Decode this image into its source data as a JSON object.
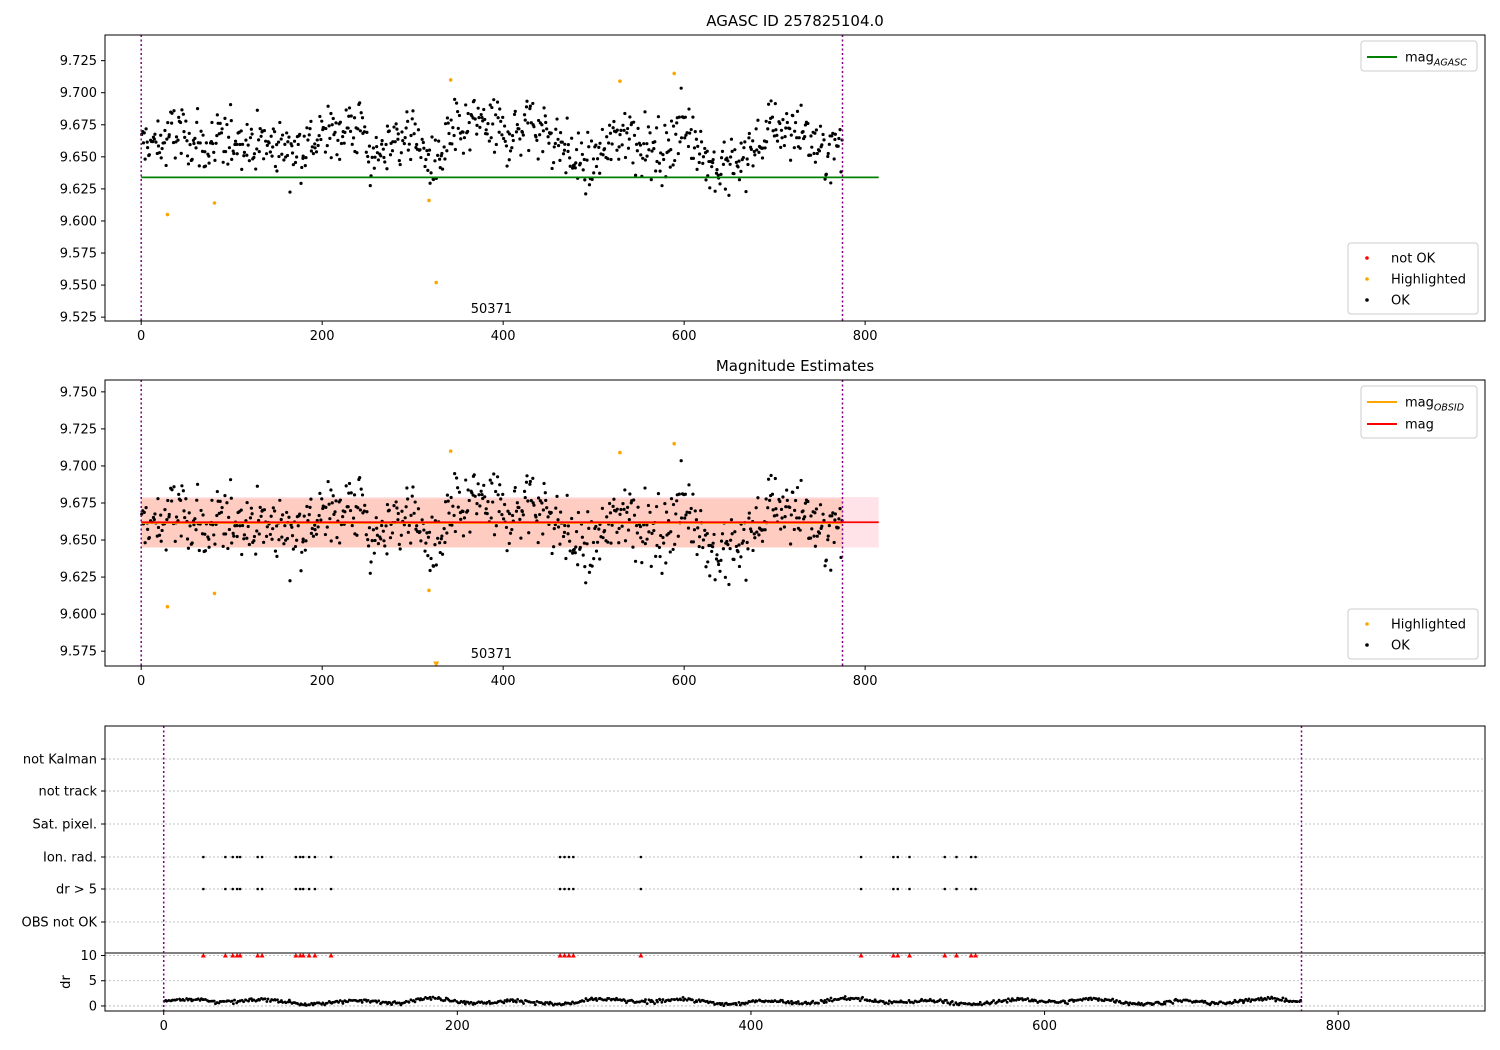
{
  "chart_data": [
    {
      "type": "scatter",
      "title": "AGASC ID 257825104.0",
      "xlim": [
        -40,
        1485
      ],
      "ylim": [
        9.522,
        9.745
      ],
      "yticks": [
        9.525,
        9.55,
        9.575,
        9.6,
        9.625,
        9.65,
        9.675,
        9.7,
        9.725
      ],
      "xticks": [
        0,
        200,
        400,
        600,
        800
      ],
      "grid": false,
      "obsid_label": "50371",
      "obsid_boundaries": [
        0,
        775
      ],
      "lines": [
        {
          "name": "mag_AGASC",
          "label_main": "mag",
          "label_sub": "AGASC",
          "y": 9.634,
          "x_range": [
            0,
            815
          ],
          "color": "#008000"
        }
      ],
      "outliers": [
        {
          "x": 29,
          "y": 9.605
        },
        {
          "x": 81,
          "y": 9.614
        },
        {
          "x": 318,
          "y": 9.616
        },
        {
          "x": 326,
          "y": 9.552
        },
        {
          "x": 342,
          "y": 9.71
        },
        {
          "x": 529,
          "y": 9.709
        },
        {
          "x": 589,
          "y": 9.715
        }
      ],
      "legends": {
        "top_right": [
          "mag_AGASC"
        ],
        "bottom_right": [
          {
            "label": "not OK",
            "color": "#ff0000"
          },
          {
            "label": "Highlighted",
            "color": "#ffa500"
          },
          {
            "label": "OK",
            "color": "#000000"
          }
        ]
      },
      "series_ok": {
        "name": "OK",
        "n_points": 775,
        "x_range": [
          0,
          775
        ],
        "y_range": [
          9.62,
          9.706
        ],
        "color": "#000000"
      }
    },
    {
      "type": "scatter",
      "title": "Magnitude Estimates",
      "xlim": [
        -40,
        1485
      ],
      "ylim": [
        9.565,
        9.758
      ],
      "yticks": [
        9.575,
        9.6,
        9.625,
        9.65,
        9.675,
        9.7,
        9.725,
        9.75
      ],
      "xticks": [
        0,
        200,
        400,
        600,
        800
      ],
      "grid": false,
      "obsid_label": "50371",
      "obsid_boundaries": [
        0,
        775
      ],
      "lines": [
        {
          "name": "mag_OBSID",
          "label_main": "mag",
          "label_sub": "OBSID",
          "y": 9.6615,
          "x_range": [
            0,
            775
          ],
          "color": "#ffa500"
        },
        {
          "name": "mag",
          "label_main": "mag",
          "label_sub": "",
          "y": 9.662,
          "x_range": [
            0,
            815
          ],
          "color": "#ff0000"
        }
      ],
      "bands": [
        {
          "y_range": [
            9.645,
            9.679
          ],
          "x_range": [
            0,
            815
          ],
          "color": "#ffc0cb",
          "opacity": 0.45
        },
        {
          "y_range": [
            9.645,
            9.678
          ],
          "x_range": [
            0,
            775
          ],
          "color": "#ffa07a",
          "opacity": 0.35
        }
      ],
      "outliers": [
        {
          "x": 29,
          "y": 9.605
        },
        {
          "x": 81,
          "y": 9.614
        },
        {
          "x": 318,
          "y": 9.616
        },
        {
          "x": 342,
          "y": 9.71
        },
        {
          "x": 529,
          "y": 9.709
        },
        {
          "x": 589,
          "y": 9.715
        }
      ],
      "offscale_marker": {
        "x": 326,
        "y": 9.566,
        "shape": "triangle-down"
      },
      "legends": {
        "top_right": [
          "mag_OBSID",
          "mag"
        ],
        "bottom_right": [
          {
            "label": "Highlighted",
            "color": "#ffa500"
          },
          {
            "label": "OK",
            "color": "#000000"
          }
        ]
      }
    },
    {
      "type": "scatter",
      "title": "",
      "xlim": [
        -40,
        900
      ],
      "xticks": [
        0,
        200,
        400,
        600,
        800
      ],
      "flag_categories": [
        "not Kalman",
        "not track",
        "Sat. pixel.",
        "Ion. rad.",
        "dr > 5",
        "OBS not OK"
      ],
      "flag_points": {
        "Ion. rad.": [
          27,
          42,
          47,
          50,
          52,
          64,
          67,
          90,
          93,
          95,
          99,
          103,
          114,
          270,
          273,
          276,
          279,
          325,
          475,
          497,
          500,
          508,
          532,
          540,
          550,
          553
        ],
        "dr > 5": [
          27,
          42,
          47,
          50,
          52,
          64,
          67,
          90,
          93,
          95,
          99,
          103,
          114,
          270,
          273,
          276,
          279,
          325,
          475,
          497,
          500,
          508,
          532,
          540,
          550,
          553
        ]
      },
      "dr_panel": {
        "ylabel": "dr",
        "yticks": [
          0,
          5,
          10
        ],
        "ylim": [
          -1,
          10.5
        ],
        "clipped_at_10": [
          27,
          42,
          47,
          50,
          52,
          64,
          67,
          90,
          93,
          95,
          99,
          103,
          114,
          270,
          273,
          276,
          279,
          325,
          475,
          497,
          500,
          508,
          532,
          540,
          550,
          553
        ],
        "baseline_range": [
          0,
          2
        ]
      },
      "obsid_boundaries": [
        0,
        775
      ]
    }
  ]
}
